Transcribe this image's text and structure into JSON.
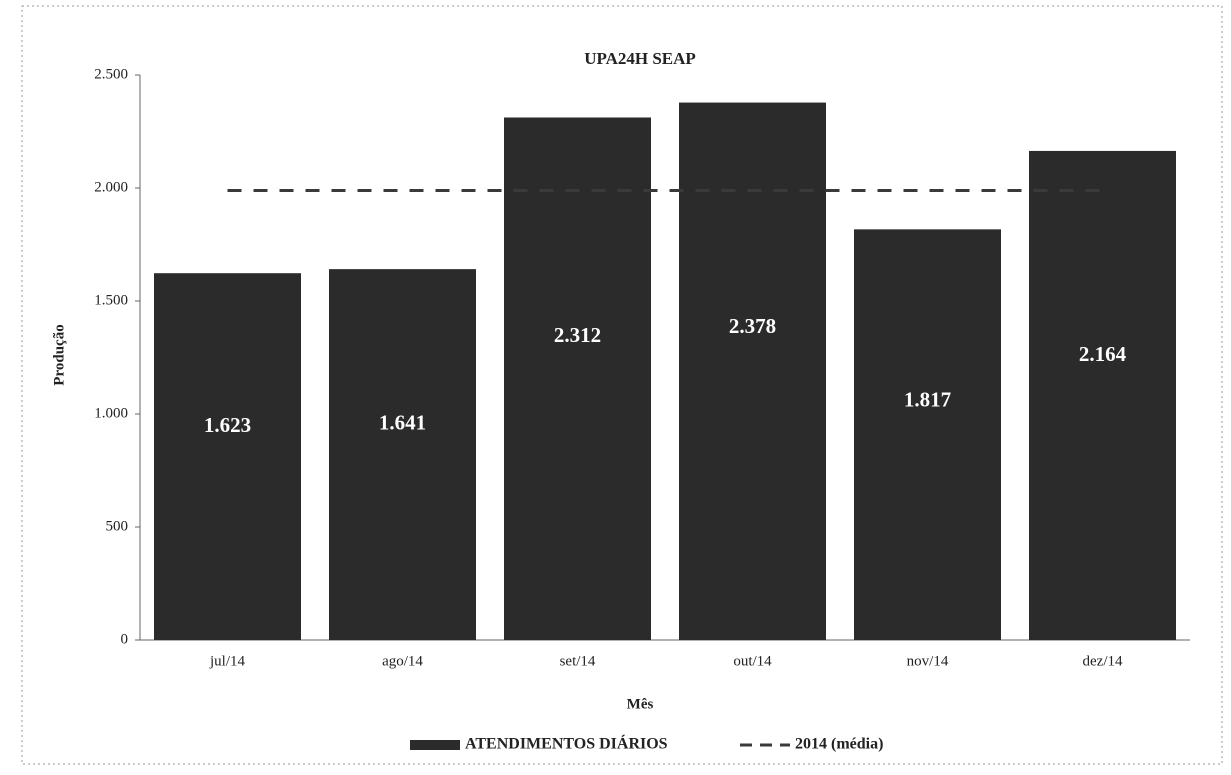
{
  "chart_data": {
    "type": "bar",
    "title": "UPA24H SEAP",
    "x_label": "Mês",
    "y_label": "Produção",
    "categories": [
      "jul/14",
      "ago/14",
      "set/14",
      "out/14",
      "nov/14",
      "dez/14"
    ],
    "series": [
      {
        "name": "ATENDIMENTOS DIÁRIOS",
        "color": "#2b2b2b",
        "values": [
          1623,
          1641,
          2312,
          2378,
          1817,
          2164
        ],
        "value_labels": [
          "1.623",
          "1.641",
          "2.312",
          "2.378",
          "1.817",
          "2.164"
        ]
      },
      {
        "name": "2014 (média)",
        "type": "line",
        "dashed": true,
        "color": "#3a3a3a",
        "values": [
          1989,
          1989,
          1989,
          1989,
          1989,
          1989
        ]
      }
    ],
    "ylim": [
      0,
      2500
    ],
    "yticks": [
      0,
      500,
      {
        "value": 1000,
        "label": "1.000"
      },
      {
        "value": 1500,
        "label": "1.500"
      },
      {
        "value": 2000,
        "label": "2.000"
      },
      {
        "value": 2500,
        "label": "2.500"
      }
    ],
    "legend": "bottom"
  }
}
